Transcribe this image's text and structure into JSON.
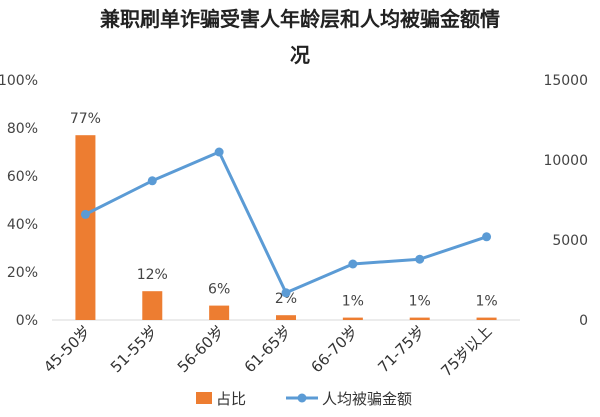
{
  "chart_data": {
    "type": "bar+line",
    "title_lines": [
      "兼职刷单诈骗受害人年龄层和人均被骗金额情",
      "况"
    ],
    "categories": [
      "45-50岁",
      "51-55岁",
      "56-60岁",
      "61-65岁",
      "66-70岁",
      "71-75岁",
      "75岁以上"
    ],
    "series": [
      {
        "name": "占比",
        "type": "bar",
        "axis": "left",
        "color": "#ED7D31",
        "values": [
          77,
          12,
          6,
          2,
          1,
          1,
          1
        ],
        "data_labels": [
          "77%",
          "12%",
          "6%",
          "2%",
          "1%",
          "1%",
          "1%"
        ]
      },
      {
        "name": "人均被骗金额",
        "type": "line",
        "axis": "right",
        "color": "#5B9BD5",
        "values": [
          6600,
          8700,
          10500,
          1700,
          3500,
          3800,
          5200
        ]
      }
    ],
    "y_left": {
      "ylim": [
        0,
        100
      ],
      "ticks": [
        "0%",
        "20%",
        "40%",
        "60%",
        "80%",
        "100%"
      ]
    },
    "y_right": {
      "ylim": [
        0,
        15000
      ],
      "ticks": [
        "0",
        "5000",
        "10000",
        "15000"
      ]
    },
    "legend_position": "bottom",
    "grid": false
  }
}
